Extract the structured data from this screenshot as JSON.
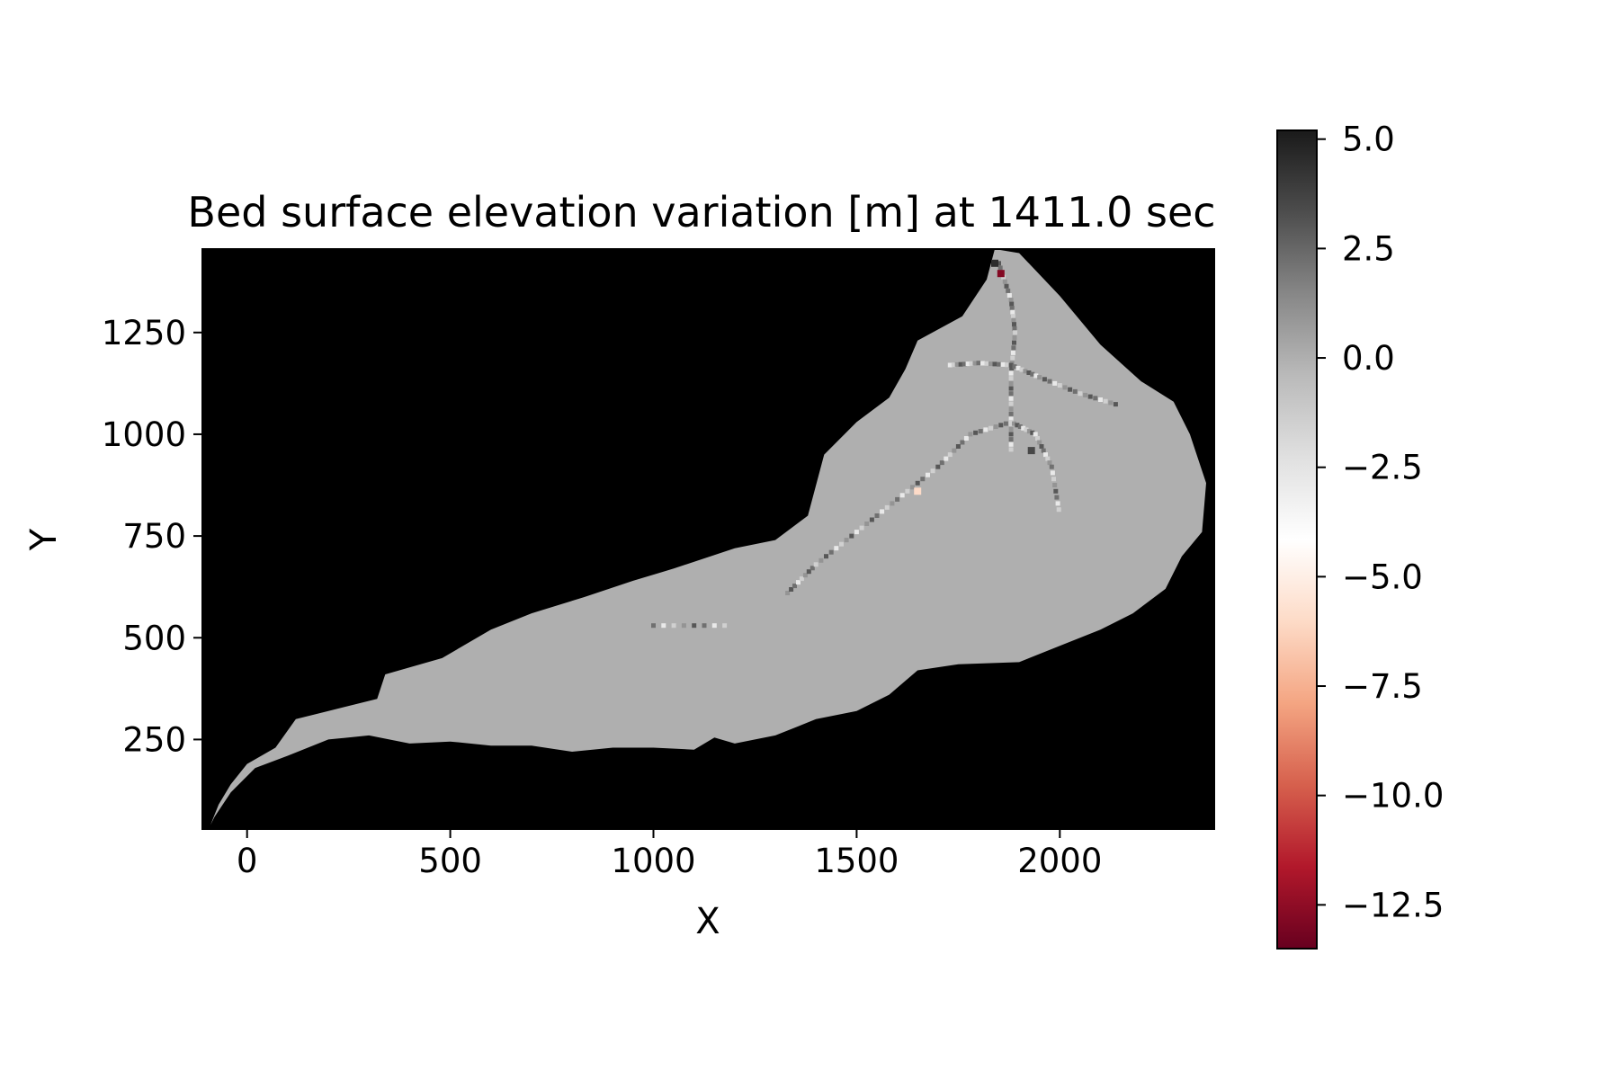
{
  "chart_data": {
    "type": "heatmap",
    "title": "Bed surface elevation variation [m] at 1411.0 sec",
    "xlabel": "X",
    "ylabel": "Y",
    "xlim": [
      -110,
      2380
    ],
    "ylim": [
      30,
      1455
    ],
    "x_ticks": [
      0,
      500,
      1000,
      1500,
      2000
    ],
    "y_ticks": [
      250,
      500,
      750,
      1000,
      1250
    ],
    "x_tick_labels": [
      "0",
      "500",
      "1000",
      "1500",
      "2000"
    ],
    "y_tick_labels": [
      "250",
      "500",
      "750",
      "1000",
      "1250"
    ],
    "colorbar": {
      "colormap": "RdGy",
      "vmin": -13.5,
      "vmax": 5.2,
      "ticks": [
        5.0,
        2.5,
        0.0,
        -2.5,
        -5.0,
        -7.5,
        -10.0,
        -12.5
      ],
      "tick_labels": [
        "5.0",
        "2.5",
        "0.0",
        "−2.5",
        "−5.0",
        "−7.5",
        "−10.0",
        "−12.5"
      ]
    },
    "background_color": "#000000",
    "domain_value": 0.0,
    "domain_outline": [
      [
        -90,
        40
      ],
      [
        -70,
        90
      ],
      [
        -40,
        140
      ],
      [
        0,
        190
      ],
      [
        70,
        230
      ],
      [
        120,
        300
      ],
      [
        200,
        320
      ],
      [
        320,
        350
      ],
      [
        340,
        410
      ],
      [
        480,
        450
      ],
      [
        600,
        520
      ],
      [
        700,
        560
      ],
      [
        830,
        600
      ],
      [
        950,
        640
      ],
      [
        1050,
        670
      ],
      [
        1200,
        720
      ],
      [
        1300,
        740
      ],
      [
        1380,
        800
      ],
      [
        1420,
        950
      ],
      [
        1500,
        1030
      ],
      [
        1580,
        1090
      ],
      [
        1620,
        1160
      ],
      [
        1650,
        1230
      ],
      [
        1760,
        1290
      ],
      [
        1820,
        1380
      ],
      [
        1840,
        1455
      ],
      [
        1900,
        1445
      ],
      [
        2000,
        1340
      ],
      [
        2100,
        1220
      ],
      [
        2200,
        1130
      ],
      [
        2280,
        1080
      ],
      [
        2320,
        1000
      ],
      [
        2360,
        880
      ],
      [
        2350,
        760
      ],
      [
        2300,
        700
      ],
      [
        2260,
        620
      ],
      [
        2180,
        560
      ],
      [
        2100,
        520
      ],
      [
        2000,
        480
      ],
      [
        1900,
        440
      ],
      [
        1750,
        435
      ],
      [
        1650,
        420
      ],
      [
        1580,
        360
      ],
      [
        1500,
        320
      ],
      [
        1400,
        300
      ],
      [
        1300,
        260
      ],
      [
        1200,
        240
      ],
      [
        1150,
        255
      ],
      [
        1100,
        225
      ],
      [
        1000,
        230
      ],
      [
        900,
        230
      ],
      [
        800,
        220
      ],
      [
        700,
        235
      ],
      [
        600,
        235
      ],
      [
        500,
        245
      ],
      [
        400,
        240
      ],
      [
        300,
        260
      ],
      [
        200,
        250
      ],
      [
        100,
        210
      ],
      [
        20,
        180
      ],
      [
        -40,
        120
      ],
      [
        -80,
        60
      ]
    ],
    "channel_lines": [
      [
        [
          1850,
          1420
        ],
        [
          1880,
          1330
        ],
        [
          1890,
          1250
        ],
        [
          1880,
          1150
        ],
        [
          1880,
          1050
        ],
        [
          1880,
          950
        ]
      ],
      [
        [
          1730,
          1170
        ],
        [
          1800,
          1175
        ],
        [
          1880,
          1170
        ],
        [
          1950,
          1140
        ],
        [
          2050,
          1100
        ],
        [
          2150,
          1070
        ]
      ],
      [
        [
          1330,
          610
        ],
        [
          1400,
          680
        ],
        [
          1500,
          760
        ],
        [
          1600,
          840
        ],
        [
          1700,
          920
        ],
        [
          1780,
          1000
        ],
        [
          1880,
          1030
        ],
        [
          1940,
          1000
        ],
        [
          1980,
          920
        ],
        [
          2000,
          800
        ]
      ],
      [
        [
          1000,
          530
        ],
        [
          1200,
          530
        ]
      ]
    ],
    "hotspots": [
      {
        "x": 1855,
        "y": 1395,
        "value": -12.8
      },
      {
        "x": 1840,
        "y": 1420,
        "value": 4.5
      },
      {
        "x": 1930,
        "y": 960,
        "value": 3.5
      },
      {
        "x": 1650,
        "y": 860,
        "value": -6.0
      }
    ]
  }
}
